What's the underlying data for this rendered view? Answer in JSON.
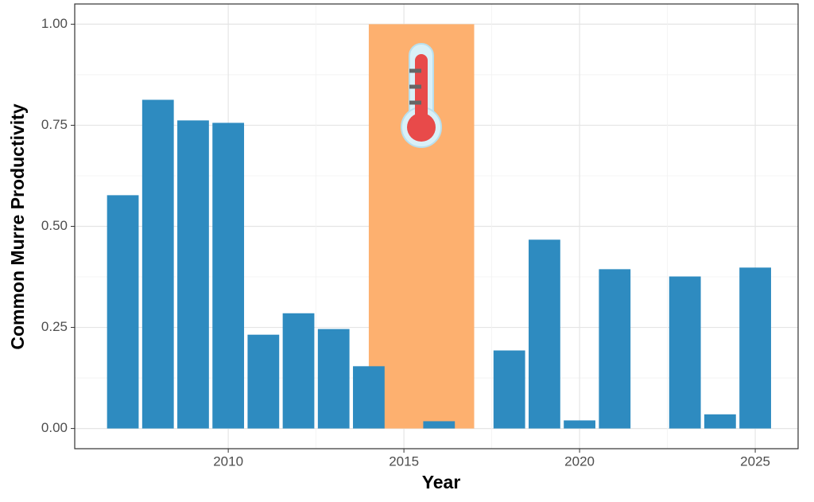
{
  "chart_data": {
    "type": "bar",
    "x_label": "Year",
    "y_label": "Common Murre Productivity",
    "x": [
      2007,
      2008,
      2009,
      2010,
      2011,
      2012,
      2013,
      2014,
      2016,
      2018,
      2019,
      2020,
      2021,
      2023,
      2024,
      2025
    ],
    "values": [
      0.577,
      0.813,
      0.762,
      0.756,
      0.232,
      0.285,
      0.246,
      0.154,
      0.018,
      0.193,
      0.467,
      0.02,
      0.394,
      0.376,
      0.035,
      0.398
    ],
    "color": "#2e8bc0",
    "highlight": {
      "xmin": 2014,
      "xmax": 2017,
      "ymin": 0,
      "ymax": 1,
      "color": "#fdb06f"
    },
    "xlim": [
      2005.63,
      2026.22
    ],
    "ylim": [
      -0.05,
      1.05
    ],
    "xticks": [
      2010,
      2015,
      2020,
      2025
    ],
    "yticks": [
      {
        "value": 0,
        "label": "0.00"
      },
      {
        "value": 0.25,
        "label": "0.25"
      },
      {
        "value": 0.5,
        "label": "0.50"
      },
      {
        "value": 0.75,
        "label": "0.75"
      },
      {
        "value": 1,
        "label": "1.00"
      }
    ],
    "grid": true
  }
}
